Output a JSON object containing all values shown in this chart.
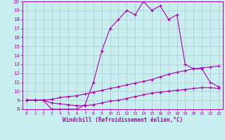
{
  "xlabel": "Windchill (Refroidissement éolien,°C)",
  "xlim": [
    -0.5,
    23.5
  ],
  "ylim": [
    8,
    20
  ],
  "xticks": [
    0,
    1,
    2,
    3,
    4,
    5,
    6,
    7,
    8,
    9,
    10,
    11,
    12,
    13,
    14,
    15,
    16,
    17,
    18,
    19,
    20,
    21,
    22,
    23
  ],
  "yticks": [
    8,
    9,
    10,
    11,
    12,
    13,
    14,
    15,
    16,
    17,
    18,
    19,
    20
  ],
  "bg_color": "#c8eef0",
  "line_color": "#aa00aa",
  "grid_color": "#b0c8cc",
  "line1_y": [
    9.0,
    9.0,
    9.0,
    8.0,
    8.0,
    8.0,
    8.0,
    8.5,
    11.0,
    14.5,
    17.0,
    18.0,
    19.0,
    18.5,
    20.0,
    19.0,
    19.5,
    18.0,
    18.5,
    13.0,
    12.5,
    12.5,
    11.0,
    10.5
  ],
  "line2_y": [
    9.0,
    9.0,
    9.0,
    9.1,
    9.3,
    9.4,
    9.5,
    9.7,
    9.9,
    10.1,
    10.3,
    10.5,
    10.7,
    10.9,
    11.1,
    11.3,
    11.6,
    11.9,
    12.1,
    12.3,
    12.5,
    12.6,
    12.7,
    12.8
  ],
  "line3_y": [
    9.0,
    9.0,
    9.0,
    8.7,
    8.6,
    8.5,
    8.4,
    8.4,
    8.5,
    8.7,
    8.9,
    9.0,
    9.2,
    9.4,
    9.6,
    9.8,
    9.9,
    10.0,
    10.1,
    10.2,
    10.3,
    10.4,
    10.4,
    10.3
  ]
}
